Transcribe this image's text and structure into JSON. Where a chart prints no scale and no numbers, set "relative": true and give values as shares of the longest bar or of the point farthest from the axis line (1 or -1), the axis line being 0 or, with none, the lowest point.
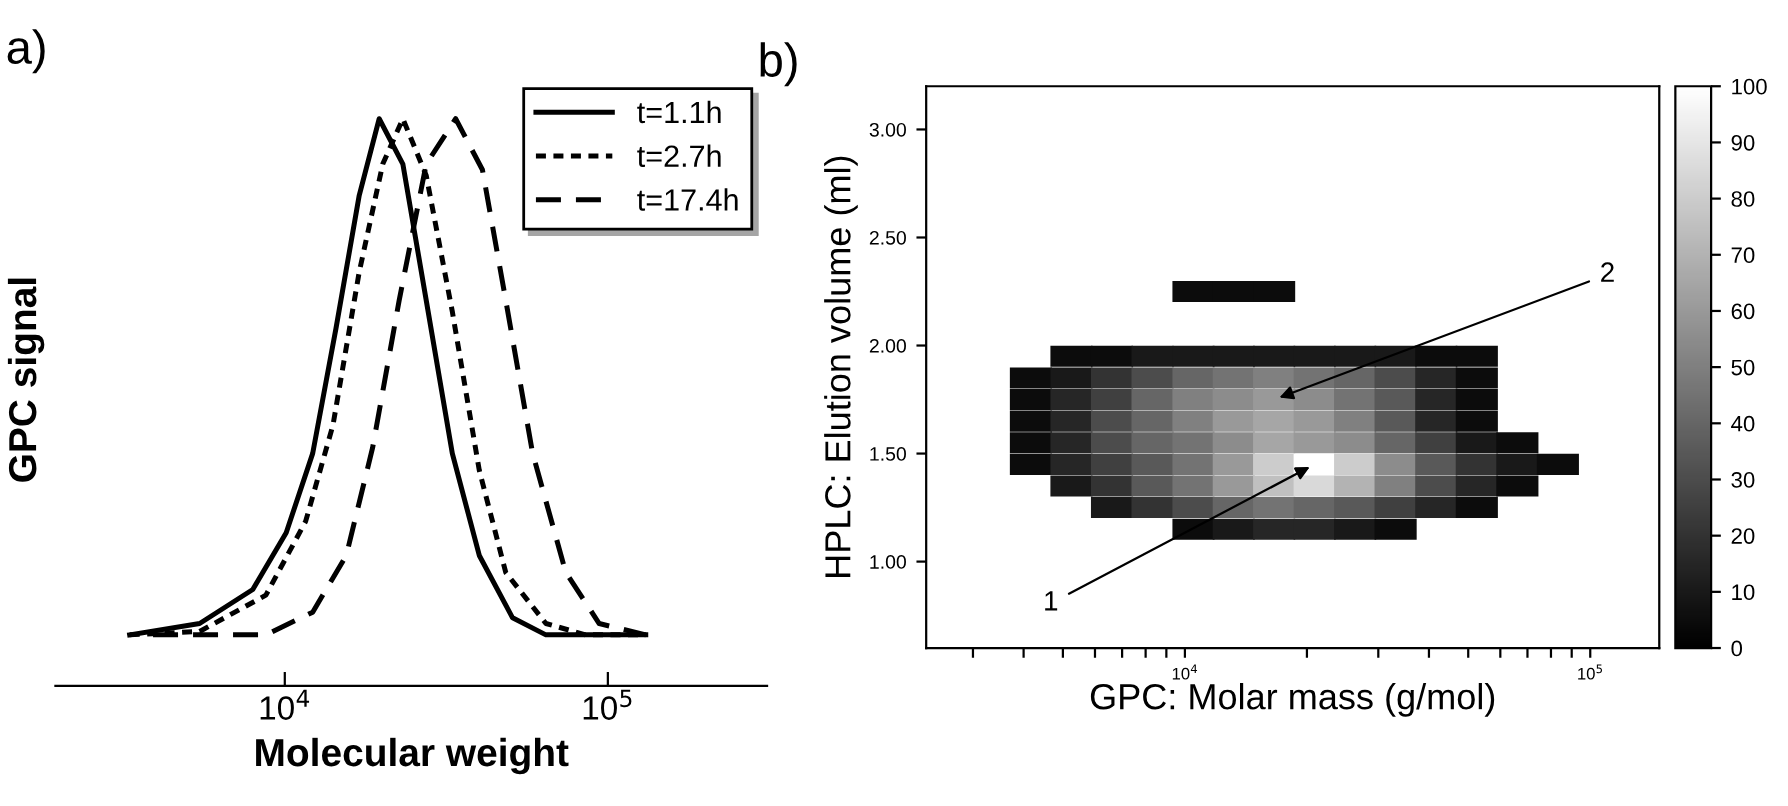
{
  "chart_data": [
    {
      "type": "line",
      "title": "a)",
      "xlabel": "Molecular weight",
      "ylabel": "GPC signal",
      "relative": true,
      "log": "x",
      "xlim": [
        1950,
        311000
      ],
      "xticks": [
        {
          "value": 10000,
          "label": "10$^{4}$"
        },
        {
          "value": 100000,
          "label": "10$^{5}$"
        }
      ],
      "tick_labels": "x",
      "legend": "top right",
      "marker": "none",
      "series": [
        {
          "name": "t=1.1h",
          "color": "#000000",
          "line_style": "solid",
          "x": [
            3310,
            5450,
            7960,
            10100,
            12200,
            14400,
            17000,
            19600,
            23200,
            27400,
            33000,
            40000,
            50700,
            64300,
            131000
          ],
          "values": [
            0.09,
            0.11,
            0.17,
            0.27,
            0.41,
            0.63,
            0.865,
            1.0,
            0.92,
            0.68,
            0.41,
            0.23,
            0.12,
            0.09,
            0.09
          ]
        },
        {
          "name": "t=2.7h",
          "color": "#000000",
          "line_style": "dotted",
          "x": [
            3310,
            5450,
            8740,
            11600,
            14100,
            17000,
            20100,
            23200,
            27400,
            33000,
            40000,
            48300,
            64300,
            85300,
            131000
          ],
          "values": [
            0.09,
            0.096,
            0.16,
            0.29,
            0.46,
            0.73,
            0.92,
            1.0,
            0.9,
            0.66,
            0.38,
            0.2,
            0.11,
            0.09,
            0.09
          ]
        },
        {
          "name": "t=17.4h",
          "color": "#000000",
          "line_style": "dashed",
          "x": [
            3910,
            8740,
            12200,
            15500,
            18700,
            22600,
            27400,
            33800,
            40900,
            48300,
            58500,
            74100,
            94000,
            131000
          ],
          "values": [
            0.09,
            0.09,
            0.13,
            0.23,
            0.42,
            0.68,
            0.92,
            1.0,
            0.91,
            0.68,
            0.41,
            0.2,
            0.11,
            0.09
          ]
        }
      ]
    },
    {
      "type": "scatter",
      "title": "b)",
      "xlabel": "GPC: Molar mass (g/mol)",
      "ylabel": "HPLC: Elution volume (ml)",
      "log": "x",
      "xlim": [
        2300,
        148000
      ],
      "ylim": [
        0.6,
        3.2
      ],
      "marker": "square",
      "xticks": [
        {
          "value": 3000,
          "label": null
        },
        {
          "value": 4000,
          "label": null
        },
        {
          "value": 5000,
          "label": null
        },
        {
          "value": 6000,
          "label": null
        },
        {
          "value": 7000,
          "label": null
        },
        {
          "value": 8000,
          "label": null
        },
        {
          "value": 9000,
          "label": null
        },
        {
          "value": 10000,
          "label": "10$^{4}$"
        },
        {
          "value": 20000,
          "label": null
        },
        {
          "value": 30000,
          "label": null
        },
        {
          "value": 40000,
          "label": null
        },
        {
          "value": 50000,
          "label": null
        },
        {
          "value": 60000,
          "label": null
        },
        {
          "value": 70000,
          "label": null
        },
        {
          "value": 80000,
          "label": null
        },
        {
          "value": 90000,
          "label": null
        },
        {
          "value": 100000,
          "label": "10$^{5}$"
        }
      ],
      "yticks": [
        {
          "value": 1.0,
          "label": "1.00"
        },
        {
          "value": 1.5,
          "label": "1.50"
        },
        {
          "value": 2.0,
          "label": "2.00"
        },
        {
          "value": 2.5,
          "label": "2.50"
        },
        {
          "value": 3.0,
          "label": "3.00"
        }
      ],
      "clim": [
        0,
        100
      ],
      "cticks": [
        0,
        10,
        20,
        30,
        40,
        50,
        60,
        70,
        80,
        90,
        100
      ],
      "annotations": [
        {
          "text": "1",
          "x": 20900,
          "y": 1.45
        },
        {
          "text": "2",
          "x": 16600,
          "y": 1.75
        }
      ],
      "x": [
        10500,
        13200,
        16600,
        5250,
        6610,
        8320,
        10500,
        13200,
        16600,
        20900,
        26300,
        33100,
        41700,
        52500,
        4170,
        5250,
        6610,
        8320,
        10500,
        13200,
        16600,
        20900,
        26300,
        33100,
        41700,
        52500,
        4170,
        5250,
        6610,
        8320,
        10500,
        13200,
        16600,
        20900,
        26300,
        33100,
        41700,
        52500,
        4170,
        5250,
        6610,
        8320,
        10500,
        13200,
        16600,
        20900,
        26300,
        33100,
        41700,
        52500,
        4170,
        5250,
        6610,
        8320,
        10500,
        13200,
        16600,
        20900,
        26300,
        33100,
        41700,
        52500,
        66100,
        4170,
        5250,
        6610,
        8320,
        10500,
        13200,
        16600,
        20900,
        26300,
        33100,
        41700,
        52500,
        66100,
        83200,
        5250,
        6610,
        8320,
        10500,
        13200,
        16600,
        20900,
        26300,
        33100,
        41700,
        52500,
        66100,
        6610,
        8320,
        10500,
        13200,
        16600,
        20900,
        26300,
        33100,
        41700,
        52500,
        10500,
        13200,
        16600,
        20900,
        26300,
        33100
      ],
      "values": [
        2.25,
        2.25,
        2.25,
        1.95,
        1.95,
        1.95,
        1.95,
        1.95,
        1.95,
        1.95,
        1.95,
        1.95,
        1.95,
        1.95,
        1.85,
        1.85,
        1.85,
        1.85,
        1.85,
        1.85,
        1.85,
        1.85,
        1.85,
        1.85,
        1.85,
        1.85,
        1.75,
        1.75,
        1.75,
        1.75,
        1.75,
        1.75,
        1.75,
        1.75,
        1.75,
        1.75,
        1.75,
        1.75,
        1.65,
        1.65,
        1.65,
        1.65,
        1.65,
        1.65,
        1.65,
        1.65,
        1.65,
        1.65,
        1.65,
        1.65,
        1.55,
        1.55,
        1.55,
        1.55,
        1.55,
        1.55,
        1.55,
        1.55,
        1.55,
        1.55,
        1.55,
        1.55,
        1.55,
        1.45,
        1.45,
        1.45,
        1.45,
        1.45,
        1.45,
        1.45,
        1.45,
        1.45,
        1.45,
        1.45,
        1.45,
        1.45,
        1.45,
        1.35,
        1.35,
        1.35,
        1.35,
        1.35,
        1.35,
        1.35,
        1.35,
        1.35,
        1.35,
        1.35,
        1.35,
        1.25,
        1.25,
        1.25,
        1.25,
        1.25,
        1.25,
        1.25,
        1.25,
        1.25,
        1.25,
        1.15,
        1.15,
        1.15,
        1.15,
        1.15,
        1.15
      ],
      "cvalues": [
        5,
        5,
        5,
        5,
        5,
        10,
        10,
        10,
        10,
        10,
        10,
        10,
        5,
        5,
        5,
        10,
        20,
        30,
        40,
        45,
        50,
        45,
        40,
        30,
        15,
        5,
        5,
        15,
        25,
        40,
        50,
        55,
        60,
        55,
        45,
        35,
        15,
        5,
        5,
        15,
        30,
        40,
        50,
        60,
        65,
        60,
        50,
        35,
        15,
        5,
        5,
        15,
        30,
        40,
        45,
        55,
        65,
        60,
        55,
        40,
        25,
        10,
        5,
        5,
        15,
        25,
        35,
        45,
        60,
        80,
        100,
        80,
        55,
        35,
        20,
        10,
        5,
        10,
        20,
        35,
        45,
        60,
        75,
        85,
        70,
        50,
        30,
        15,
        5,
        10,
        20,
        30,
        40,
        45,
        40,
        35,
        25,
        15,
        5,
        5,
        10,
        15,
        15,
        10,
        5
      ]
    }
  ]
}
